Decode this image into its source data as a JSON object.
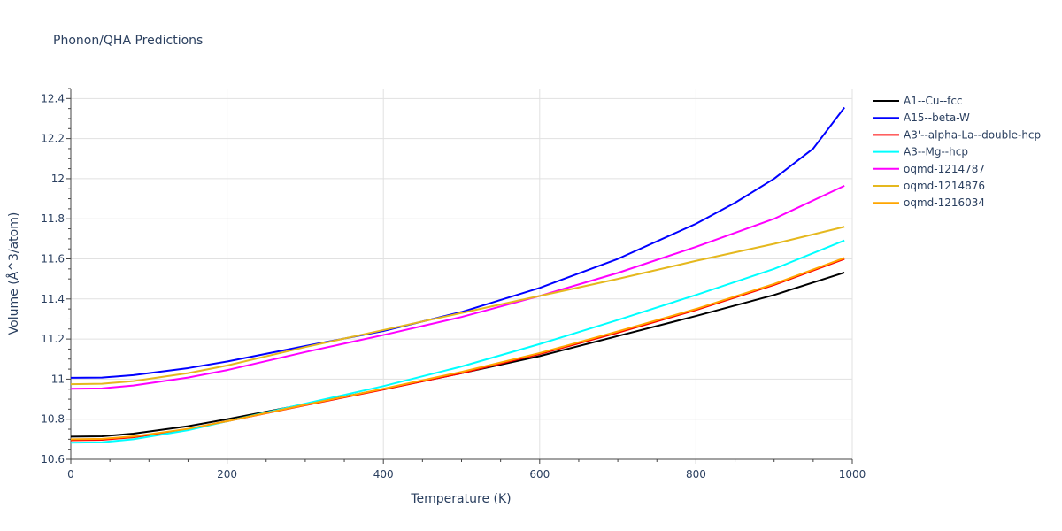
{
  "chart_data": {
    "type": "line",
    "title": "Phonon/QHA Predictions",
    "xlabel": "Temperature (K)",
    "ylabel": "Volume (Å^3/atom)",
    "xlim": [
      0,
      1000
    ],
    "ylim": [
      10.6,
      12.45
    ],
    "grid": true,
    "legend_position": "right",
    "x_ticks": [
      0,
      200,
      400,
      600,
      800,
      1000
    ],
    "x_tick_labels": [
      "0",
      "200",
      "400",
      "600",
      "800",
      "1000"
    ],
    "y_ticks": [
      10.6,
      10.8,
      11.0,
      11.2,
      11.4,
      11.6,
      11.8,
      12.0,
      12.2,
      12.4
    ],
    "y_tick_labels": [
      "10.6",
      "10.8",
      "11",
      "11.2",
      "11.4",
      "11.6",
      "11.8",
      "12",
      "12.2",
      "12.4"
    ],
    "series": [
      {
        "name": "A1--Cu--fcc",
        "color": "#000000",
        "points": [
          [
            0,
            10.713
          ],
          [
            40,
            10.715
          ],
          [
            80,
            10.728
          ],
          [
            150,
            10.765
          ],
          [
            200,
            10.8
          ],
          [
            300,
            10.875
          ],
          [
            400,
            10.95
          ],
          [
            500,
            11.03
          ],
          [
            600,
            11.115
          ],
          [
            700,
            11.215
          ],
          [
            800,
            11.315
          ],
          [
            900,
            11.42
          ],
          [
            990,
            11.532
          ]
        ]
      },
      {
        "name": "A15--beta-W",
        "color": "#0000ff",
        "points": [
          [
            0,
            11.007
          ],
          [
            40,
            11.008
          ],
          [
            80,
            11.02
          ],
          [
            150,
            11.055
          ],
          [
            200,
            11.088
          ],
          [
            300,
            11.165
          ],
          [
            400,
            11.24
          ],
          [
            500,
            11.335
          ],
          [
            600,
            11.455
          ],
          [
            700,
            11.6
          ],
          [
            800,
            11.775
          ],
          [
            850,
            11.88
          ],
          [
            900,
            12.0
          ],
          [
            950,
            12.15
          ],
          [
            990,
            12.355
          ]
        ]
      },
      {
        "name": "A3'--alpha-La--double-hcp",
        "color": "#ff0000",
        "points": [
          [
            0,
            10.695
          ],
          [
            40,
            10.697
          ],
          [
            80,
            10.71
          ],
          [
            150,
            10.75
          ],
          [
            200,
            10.79
          ],
          [
            300,
            10.87
          ],
          [
            400,
            10.948
          ],
          [
            500,
            11.03
          ],
          [
            600,
            11.125
          ],
          [
            700,
            11.232
          ],
          [
            800,
            11.345
          ],
          [
            900,
            11.47
          ],
          [
            990,
            11.6
          ]
        ]
      },
      {
        "name": "A3--Mg--hcp",
        "color": "#00ffff",
        "points": [
          [
            0,
            10.683
          ],
          [
            40,
            10.685
          ],
          [
            80,
            10.7
          ],
          [
            150,
            10.745
          ],
          [
            200,
            10.79
          ],
          [
            300,
            10.878
          ],
          [
            400,
            10.965
          ],
          [
            500,
            11.063
          ],
          [
            600,
            11.175
          ],
          [
            700,
            11.295
          ],
          [
            800,
            11.42
          ],
          [
            900,
            11.55
          ],
          [
            990,
            11.692
          ]
        ]
      },
      {
        "name": "oqmd-1214787",
        "color": "#ff00ff",
        "points": [
          [
            0,
            10.952
          ],
          [
            40,
            10.954
          ],
          [
            80,
            10.968
          ],
          [
            150,
            11.008
          ],
          [
            200,
            11.045
          ],
          [
            300,
            11.135
          ],
          [
            400,
            11.22
          ],
          [
            500,
            11.31
          ],
          [
            600,
            11.415
          ],
          [
            700,
            11.53
          ],
          [
            800,
            11.66
          ],
          [
            900,
            11.8
          ],
          [
            990,
            11.965
          ]
        ]
      },
      {
        "name": "oqmd-1214876",
        "color": "#e5b81e",
        "points": [
          [
            0,
            10.975
          ],
          [
            40,
            10.977
          ],
          [
            80,
            10.99
          ],
          [
            150,
            11.03
          ],
          [
            200,
            11.068
          ],
          [
            300,
            11.16
          ],
          [
            400,
            11.245
          ],
          [
            500,
            11.33
          ],
          [
            600,
            11.415
          ],
          [
            700,
            11.5
          ],
          [
            800,
            11.59
          ],
          [
            900,
            11.675
          ],
          [
            990,
            11.76
          ]
        ]
      },
      {
        "name": "oqmd-1216034",
        "color": "#ffa500",
        "points": [
          [
            0,
            10.7
          ],
          [
            40,
            10.702
          ],
          [
            80,
            10.714
          ],
          [
            150,
            10.752
          ],
          [
            200,
            10.79
          ],
          [
            300,
            10.872
          ],
          [
            400,
            10.952
          ],
          [
            500,
            11.036
          ],
          [
            600,
            11.13
          ],
          [
            700,
            11.238
          ],
          [
            800,
            11.35
          ],
          [
            900,
            11.475
          ],
          [
            990,
            11.605
          ]
        ]
      }
    ]
  }
}
